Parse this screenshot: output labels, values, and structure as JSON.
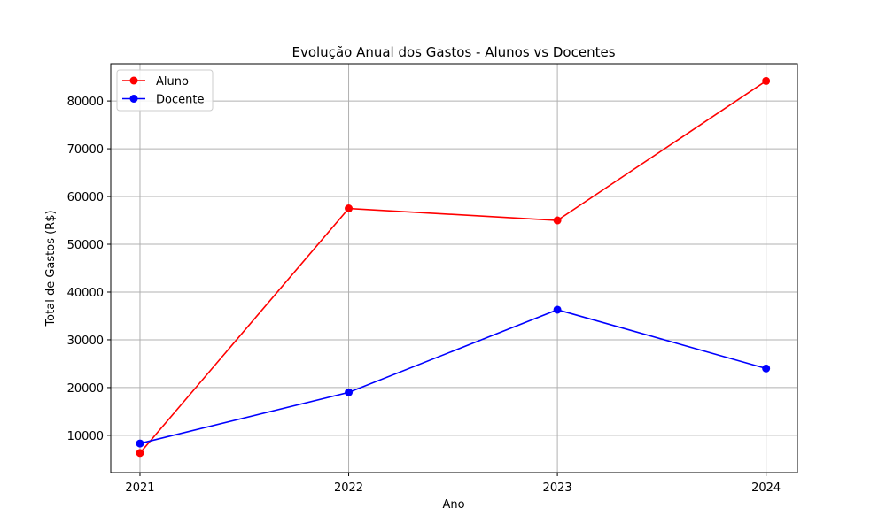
{
  "chart_data": {
    "type": "line",
    "title": "Evolução Anual dos Gastos - Alunos vs Docentes",
    "xlabel": "Ano",
    "ylabel": "Total de Gastos (R$)",
    "x": [
      2021,
      2022,
      2023,
      2024
    ],
    "x_tick_labels": [
      "2021",
      "2022",
      "2023",
      "2024"
    ],
    "xlim": [
      2020.86,
      2024.15
    ],
    "ylim": [
      2200,
      87800
    ],
    "y_ticks": [
      10000,
      20000,
      30000,
      40000,
      50000,
      60000,
      70000,
      80000
    ],
    "y_tick_labels": [
      "10000",
      "20000",
      "30000",
      "40000",
      "50000",
      "60000",
      "70000",
      "80000"
    ],
    "grid": true,
    "legend_position": "upper-left",
    "series": [
      {
        "name": "Aluno",
        "color": "#ff0000",
        "marker": "circle",
        "values": [
          6300,
          57500,
          55000,
          84200
        ]
      },
      {
        "name": "Docente",
        "color": "#0000ff",
        "marker": "circle",
        "values": [
          8300,
          19000,
          36300,
          24000
        ]
      }
    ]
  }
}
